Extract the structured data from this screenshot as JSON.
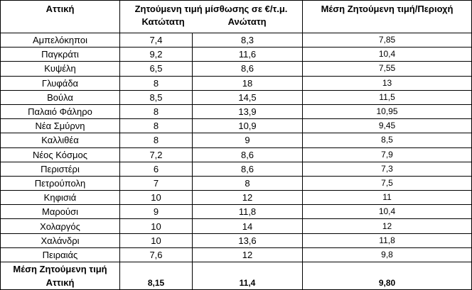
{
  "header": {
    "col_region": "Αττική",
    "col_rent": "Ζητούμενη τιμή μίσθωσης σε €/τ.μ.",
    "col_min": "Κατώτατη",
    "col_max": "Ανώτατη",
    "col_avg": "Μέση Ζητούμενη τιμή/Περιοχή"
  },
  "rows": [
    {
      "area": "Αμπελόκηποι",
      "min": "7,4",
      "max": "8,3",
      "avg": "7,85"
    },
    {
      "area": "Παγκράτι",
      "min": "9,2",
      "max": "11,6",
      "avg": "10,4"
    },
    {
      "area": "Κυψέλη",
      "min": "6,5",
      "max": "8,6",
      "avg": "7,55"
    },
    {
      "area": "Γλυφάδα",
      "min": "8",
      "max": "18",
      "avg": "13"
    },
    {
      "area": "Βούλα",
      "min": "8,5",
      "max": "14,5",
      "avg": "11,5"
    },
    {
      "area": "Παλαιό Φάληρο",
      "min": "8",
      "max": "13,9",
      "avg": "10,95"
    },
    {
      "area": "Νέα Σμύρνη",
      "min": "8",
      "max": "10,9",
      "avg": "9,45"
    },
    {
      "area": "Καλλιθέα",
      "min": "8",
      "max": "9",
      "avg": "8,5"
    },
    {
      "area": "Νέος Κόσμος",
      "min": "7,2",
      "max": "8,6",
      "avg": "7,9"
    },
    {
      "area": "Περιστέρι",
      "min": "6",
      "max": "8,6",
      "avg": "7,3"
    },
    {
      "area": "Πετρούπολη",
      "min": "7",
      "max": "8",
      "avg": "7,5"
    },
    {
      "area": "Κηφισιά",
      "min": "10",
      "max": "12",
      "avg": "11"
    },
    {
      "area": "Μαρούσι",
      "min": "9",
      "max": "11,8",
      "avg": "10,4"
    },
    {
      "area": "Χολαργός",
      "min": "10",
      "max": "14",
      "avg": "12"
    },
    {
      "area": "Χαλάνδρι",
      "min": "10",
      "max": "13,6",
      "avg": "11,8"
    },
    {
      "area": "Πειραιάς",
      "min": "7,6",
      "max": "12",
      "avg": "9,8"
    }
  ],
  "footer": {
    "label_line1": "Μέση Ζητούμενη τιμή",
    "label_line2": "Αττική",
    "min": "8,15",
    "max": "11,4",
    "avg": "9,80"
  }
}
